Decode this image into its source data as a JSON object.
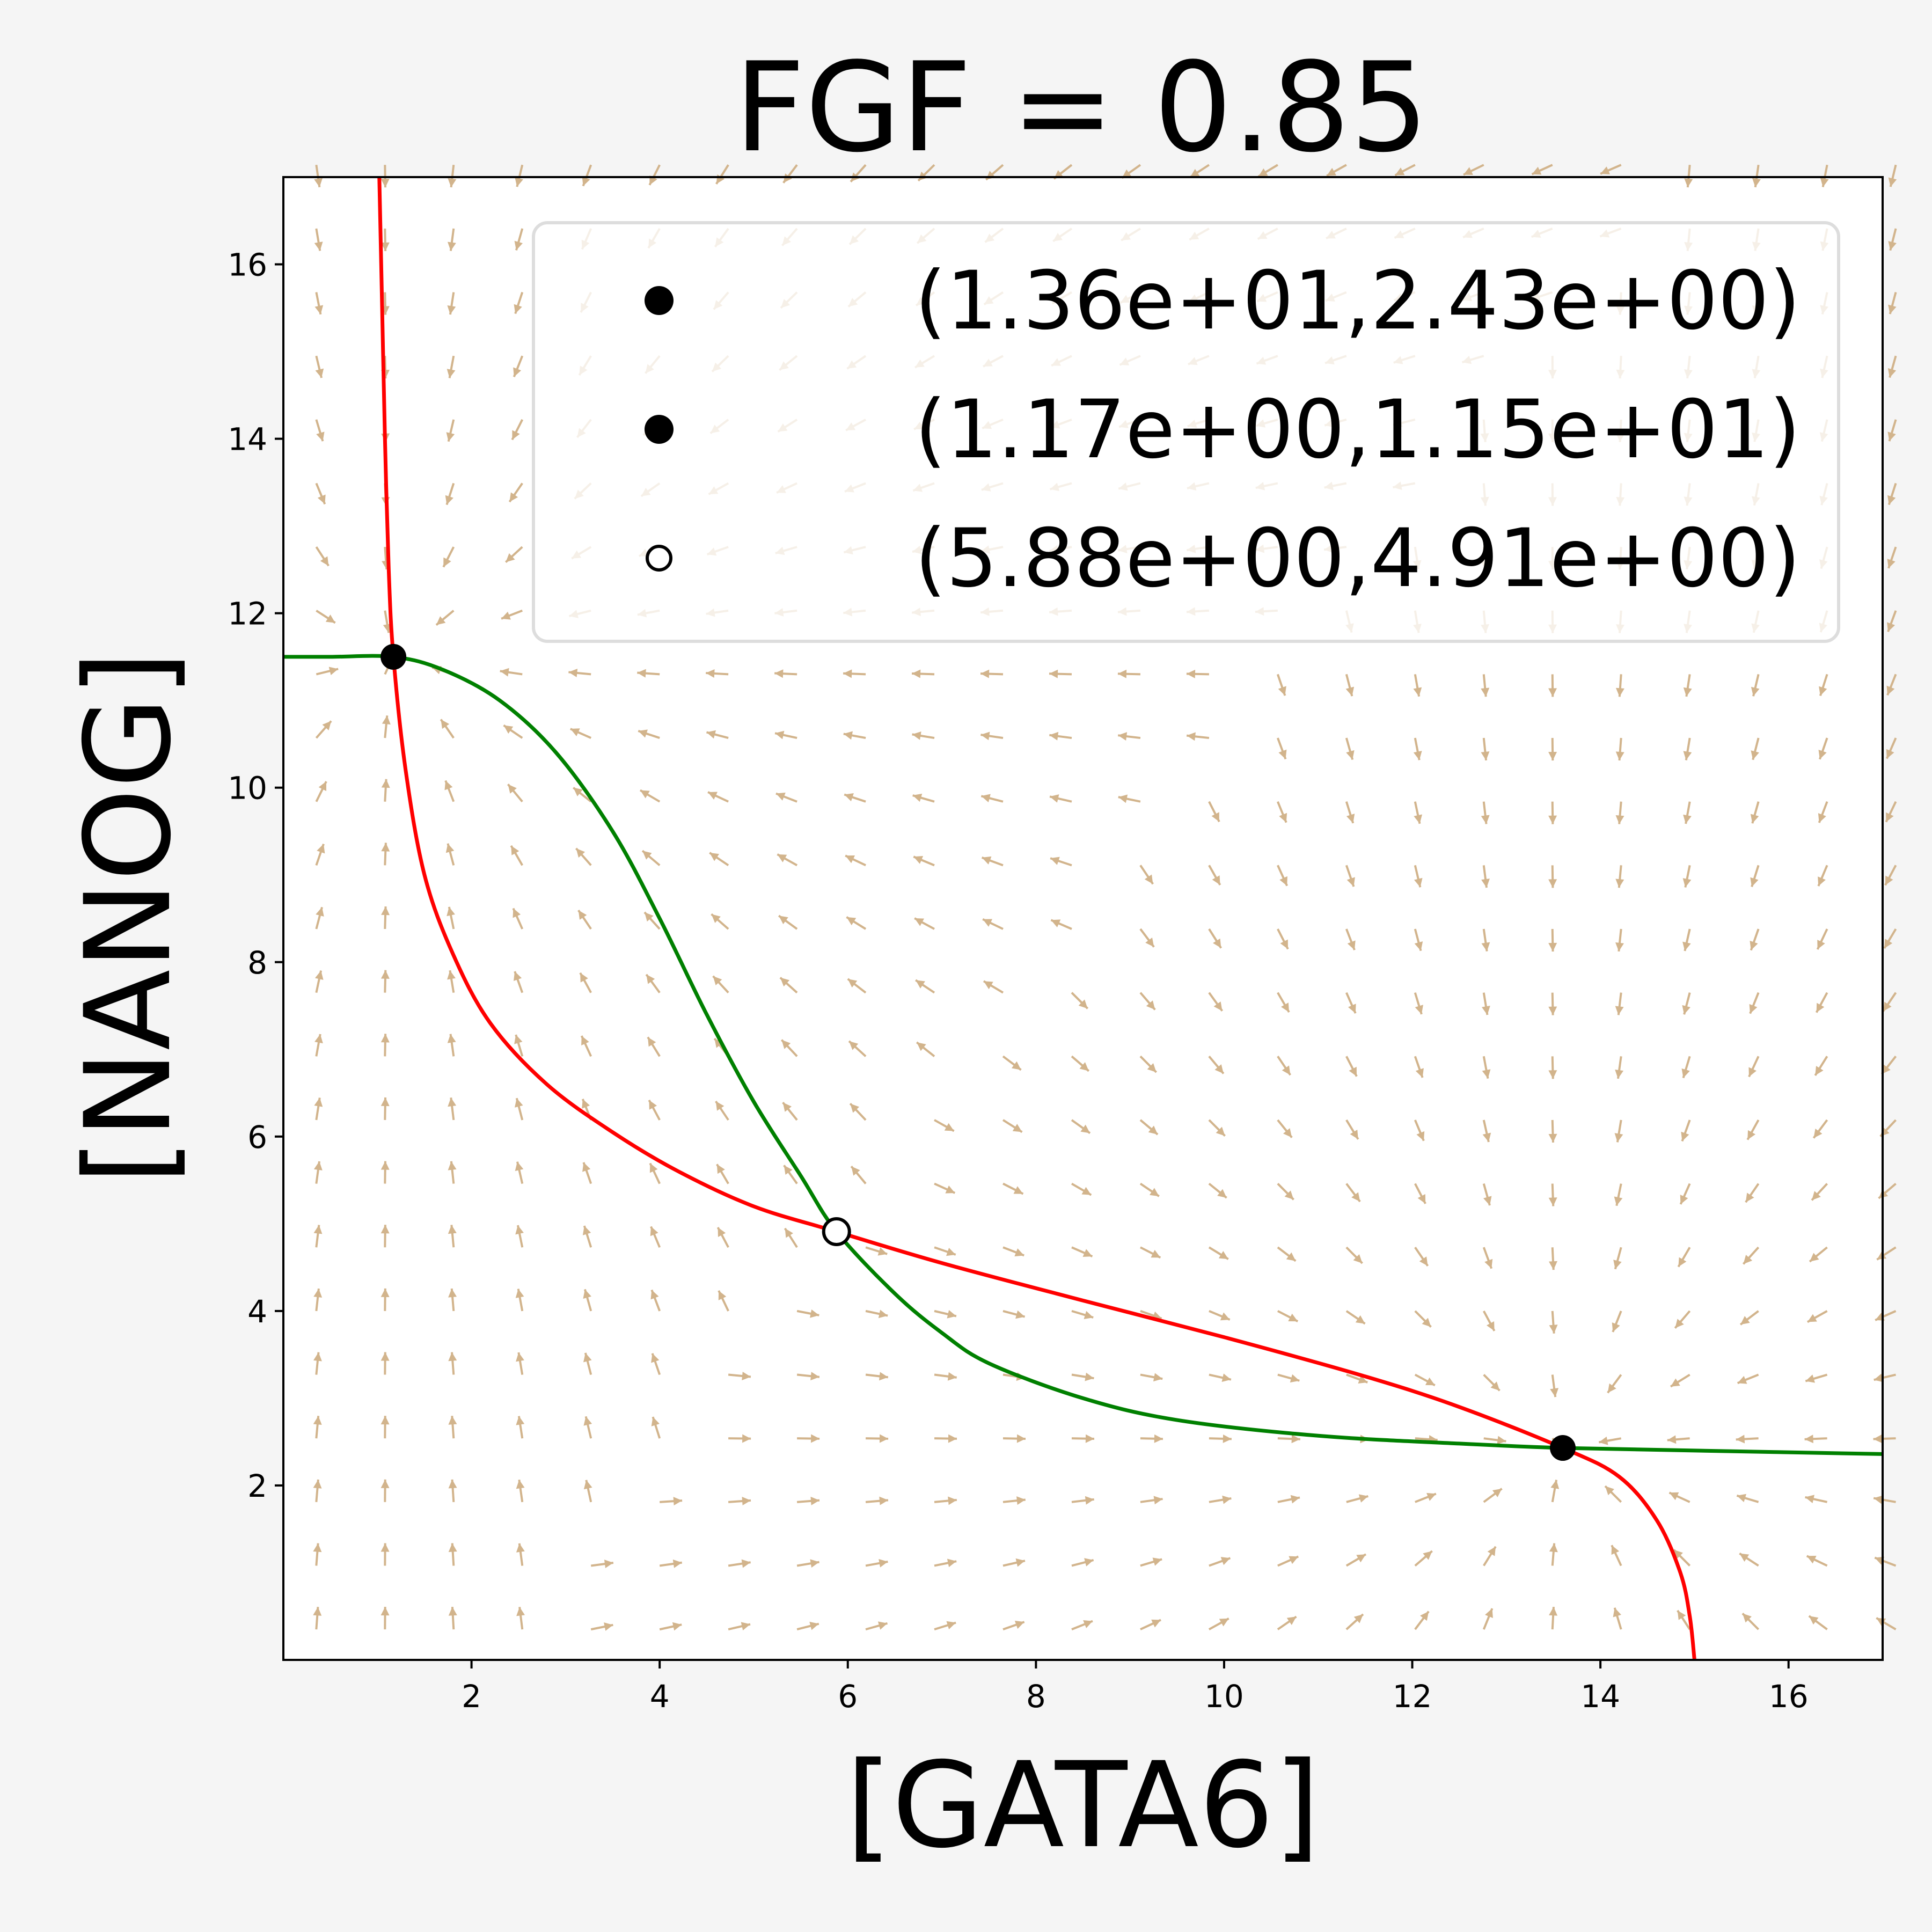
{
  "chart_data": {
    "type": "line",
    "title": "FGF = 0.85",
    "xlabel": "[GATA6]",
    "ylabel": "[NANOG]",
    "xlim": [
      0,
      17
    ],
    "ylim": [
      0,
      17
    ],
    "xticks": [
      2,
      4,
      6,
      8,
      10,
      12,
      14,
      16
    ],
    "yticks": [
      2,
      4,
      6,
      8,
      10,
      12,
      14,
      16
    ],
    "grid": false,
    "legend_position": "top-right",
    "colors": {
      "red_curve": "#ff0000",
      "green_curve": "#008000",
      "vector_field": "#d2b48c",
      "point": "#000000"
    },
    "series": [
      {
        "color": "#ff0000",
        "points": [
          [
            1.02,
            17.0
          ],
          [
            1.05,
            15.5
          ],
          [
            1.08,
            14.0
          ],
          [
            1.12,
            12.5
          ],
          [
            1.17,
            11.5
          ],
          [
            1.3,
            10.2
          ],
          [
            1.5,
            9.0
          ],
          [
            1.8,
            8.1
          ],
          [
            2.2,
            7.3
          ],
          [
            2.8,
            6.6
          ],
          [
            3.5,
            6.05
          ],
          [
            4.2,
            5.6
          ],
          [
            5.0,
            5.2
          ],
          [
            5.88,
            4.91
          ],
          [
            7.0,
            4.55
          ],
          [
            8.5,
            4.12
          ],
          [
            10.0,
            3.7
          ],
          [
            11.5,
            3.25
          ],
          [
            12.5,
            2.9
          ],
          [
            13.6,
            2.43
          ],
          [
            14.2,
            2.1
          ],
          [
            14.6,
            1.6
          ],
          [
            14.85,
            1.0
          ],
          [
            14.95,
            0.5
          ],
          [
            15.0,
            0.0
          ]
        ]
      },
      {
        "color": "#008000",
        "points": [
          [
            0.0,
            11.5
          ],
          [
            0.5,
            11.5
          ],
          [
            1.17,
            11.5
          ],
          [
            1.7,
            11.35
          ],
          [
            2.3,
            11.0
          ],
          [
            2.9,
            10.4
          ],
          [
            3.5,
            9.5
          ],
          [
            4.0,
            8.5
          ],
          [
            4.5,
            7.4
          ],
          [
            5.0,
            6.4
          ],
          [
            5.5,
            5.55
          ],
          [
            5.88,
            4.91
          ],
          [
            6.5,
            4.2
          ],
          [
            7.0,
            3.75
          ],
          [
            7.5,
            3.4
          ],
          [
            8.5,
            3.0
          ],
          [
            9.5,
            2.75
          ],
          [
            11.0,
            2.57
          ],
          [
            12.5,
            2.48
          ],
          [
            13.6,
            2.43
          ],
          [
            15.0,
            2.4
          ],
          [
            17.0,
            2.36
          ]
        ]
      }
    ],
    "fixed_points": [
      {
        "label": "(1.36e+01,2.43e+00)",
        "x": 13.6,
        "y": 2.43,
        "stable": true
      },
      {
        "label": "(1.17e+00,1.15e+01)",
        "x": 1.17,
        "y": 11.5,
        "stable": true
      },
      {
        "label": "(5.88e+00,4.91e+00)",
        "x": 5.88,
        "y": 4.91,
        "stable": false
      }
    ],
    "vector_field": {
      "x_start": 0.35,
      "x_step": 0.73,
      "x_count": 24,
      "y_start": 0.35,
      "y_step": 0.73,
      "y_count": 24
    }
  }
}
